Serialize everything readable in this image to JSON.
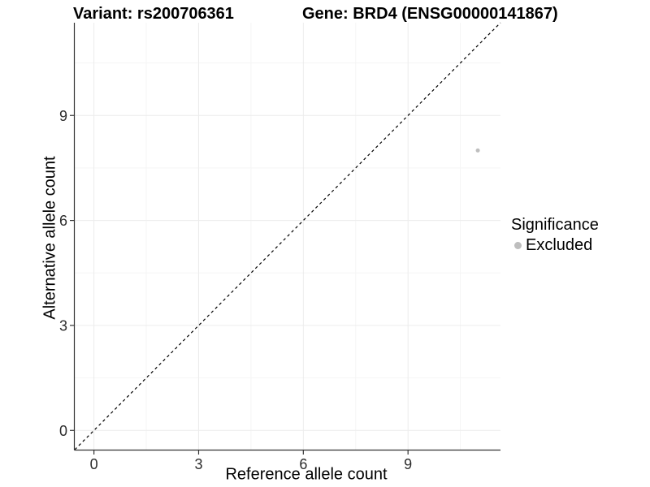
{
  "header": {
    "variant_title": "Variant: rs200706361",
    "gene_title": "Gene: BRD4 (ENSG00000141867)"
  },
  "axes": {
    "x_label": "Reference allele count",
    "y_label": "Alternative allele count"
  },
  "legend": {
    "title": "Significance",
    "items": [
      {
        "label": "Excluded",
        "color": "#bebebe"
      }
    ]
  },
  "chart_data": {
    "type": "scatter",
    "title": "Variant: rs200706361 / Gene: BRD4 (ENSG00000141867)",
    "xlabel": "Reference allele count",
    "ylabel": "Alternative allele count",
    "xlim": [
      -0.55,
      11.65
    ],
    "ylim": [
      -0.55,
      11.65
    ],
    "x_ticks": [
      0,
      3,
      6,
      9
    ],
    "y_ticks": [
      0,
      3,
      6,
      9
    ],
    "x_minor_ticks": [
      1.5,
      4.5,
      7.5,
      10.5
    ],
    "y_minor_ticks": [
      1.5,
      4.5,
      7.5,
      10.5
    ],
    "grid": true,
    "legend_position": "right",
    "series": [
      {
        "name": "Excluded",
        "color": "#bebebe",
        "points": [
          {
            "x": 11,
            "y": 8
          }
        ]
      }
    ],
    "reference_line": {
      "kind": "identity",
      "slope": 1,
      "intercept": 0,
      "style": "dashed",
      "color": "#000000"
    },
    "colors": {
      "major_grid": "#ececec",
      "minor_grid": "#f5f5f5",
      "axis": "#333333",
      "tick_label": "#2b2b2b",
      "point": "#bebebe"
    }
  }
}
